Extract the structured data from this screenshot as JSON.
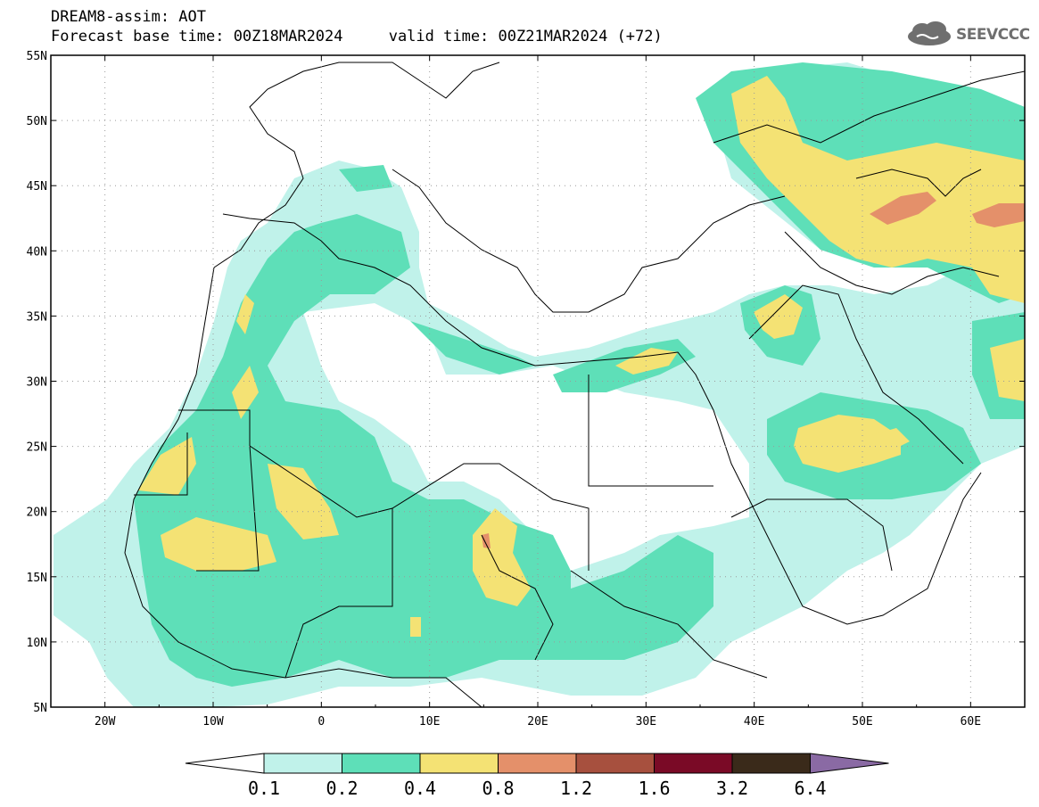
{
  "header": {
    "title": "DREAM8-assim: AOT",
    "base_time_label": "Forecast base time: 00Z18MAR2024",
    "valid_time_label": "valid time: 00Z21MAR2024 (+72)"
  },
  "logo": {
    "text": "SEEVCCC",
    "icon": "cloud-icon"
  },
  "map": {
    "lat_ticks": [
      "55N",
      "50N",
      "45N",
      "40N",
      "35N",
      "30N",
      "25N",
      "20N",
      "15N",
      "10N",
      "5N"
    ],
    "lon_ticks": [
      "20W",
      "10W",
      "0",
      "10E",
      "20E",
      "30E",
      "40E",
      "50E",
      "60E"
    ],
    "grid": "dotted",
    "lat_range": [
      5,
      55
    ],
    "lon_range": [
      -25,
      65
    ]
  },
  "colorbar": {
    "labels": [
      "0.1",
      "0.2",
      "0.4",
      "0.8",
      "1.2",
      "1.6",
      "3.2",
      "6.4"
    ],
    "colors": [
      "#c0f2ea",
      "#5edfb8",
      "#f4e274",
      "#e4906a",
      "#a7503e",
      "#7a0a26",
      "#3a2a1a",
      "#8a6aa4"
    ]
  }
}
